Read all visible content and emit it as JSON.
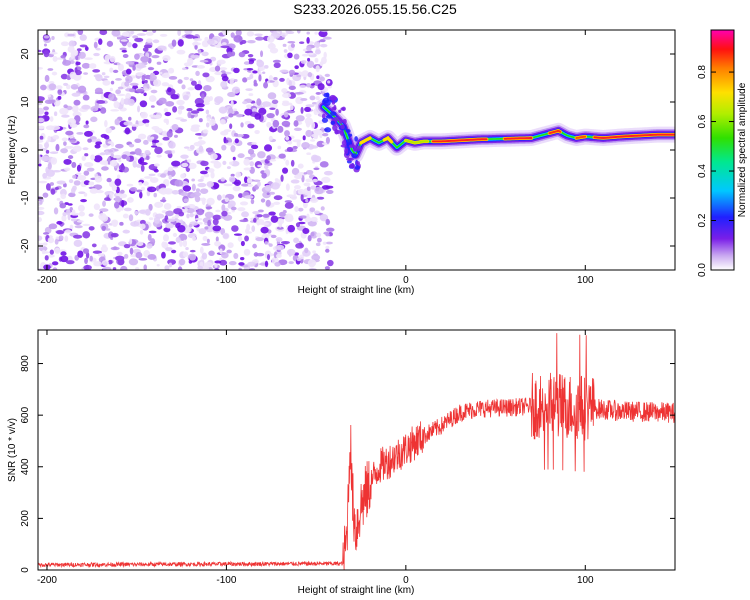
{
  "title": "S233.2026.055.15.56.C25",
  "chart_data": [
    {
      "type": "heatmap",
      "name": "spectrogram",
      "xlabel": "Height of straight line (km)",
      "ylabel": "Frequency (Hz)",
      "xlim": [
        -205,
        150
      ],
      "ylim": [
        -25,
        25
      ],
      "xticks": [
        "-200",
        "-100",
        "0",
        "100"
      ],
      "xtick_values": [
        -200,
        -100,
        0,
        100
      ],
      "yticks": [
        "-20",
        "-10",
        "0",
        "10",
        "20"
      ],
      "ytick_values": [
        -20,
        -10,
        0,
        10,
        20
      ],
      "noise_region_x": [
        -205,
        -46
      ],
      "ridge": {
        "x": [
          -46,
          -40,
          -35,
          -32,
          -30,
          -28,
          -25,
          -20,
          -15,
          -10,
          -5,
          0,
          5,
          10,
          20,
          30,
          40,
          50,
          60,
          70,
          75,
          80,
          85,
          90,
          95,
          100,
          110,
          120,
          130,
          140,
          150
        ],
        "freq": [
          9,
          7,
          5,
          2,
          0,
          -1,
          1.5,
          2.5,
          1.5,
          2.5,
          0.5,
          2,
          1.5,
          1.8,
          1.8,
          2,
          2.2,
          2.3,
          2.4,
          2.5,
          3,
          3.5,
          4,
          3,
          2.5,
          2.8,
          2.5,
          2.8,
          3,
          3.2,
          3.2
        ]
      }
    },
    {
      "type": "line",
      "name": "snr",
      "xlabel": "Height of straight line (km)",
      "ylabel": "SNR (10 * v/v)",
      "xlim": [
        -205,
        150
      ],
      "ylim": [
        0,
        930
      ],
      "xticks": [
        "-200",
        "-100",
        "0",
        "100"
      ],
      "xtick_values": [
        -200,
        -100,
        0,
        100
      ],
      "yticks": [
        "0",
        "200",
        "400",
        "600",
        "800"
      ],
      "ytick_values": [
        0,
        200,
        400,
        600,
        800
      ],
      "color": "#ee3333",
      "envelope": {
        "x": [
          -205,
          -35,
          -33,
          -32,
          -31,
          -30,
          -28,
          -25,
          -20,
          -15,
          -10,
          0,
          10,
          20,
          30,
          40,
          60,
          80,
          100,
          120,
          150
        ],
        "y": [
          20,
          25,
          120,
          300,
          540,
          300,
          150,
          250,
          330,
          400,
          420,
          470,
          520,
          560,
          610,
          625,
          630,
          640,
          630,
          615,
          610
        ]
      }
    }
  ],
  "colorbar": {
    "label": "Normalized spectral amplitude",
    "ticks": [
      "0.0",
      "0.2",
      "0.4",
      "0.6",
      "0.8"
    ],
    "tick_values": [
      0,
      0.2,
      0.4,
      0.6,
      0.8
    ],
    "range": [
      0,
      0.97
    ]
  }
}
